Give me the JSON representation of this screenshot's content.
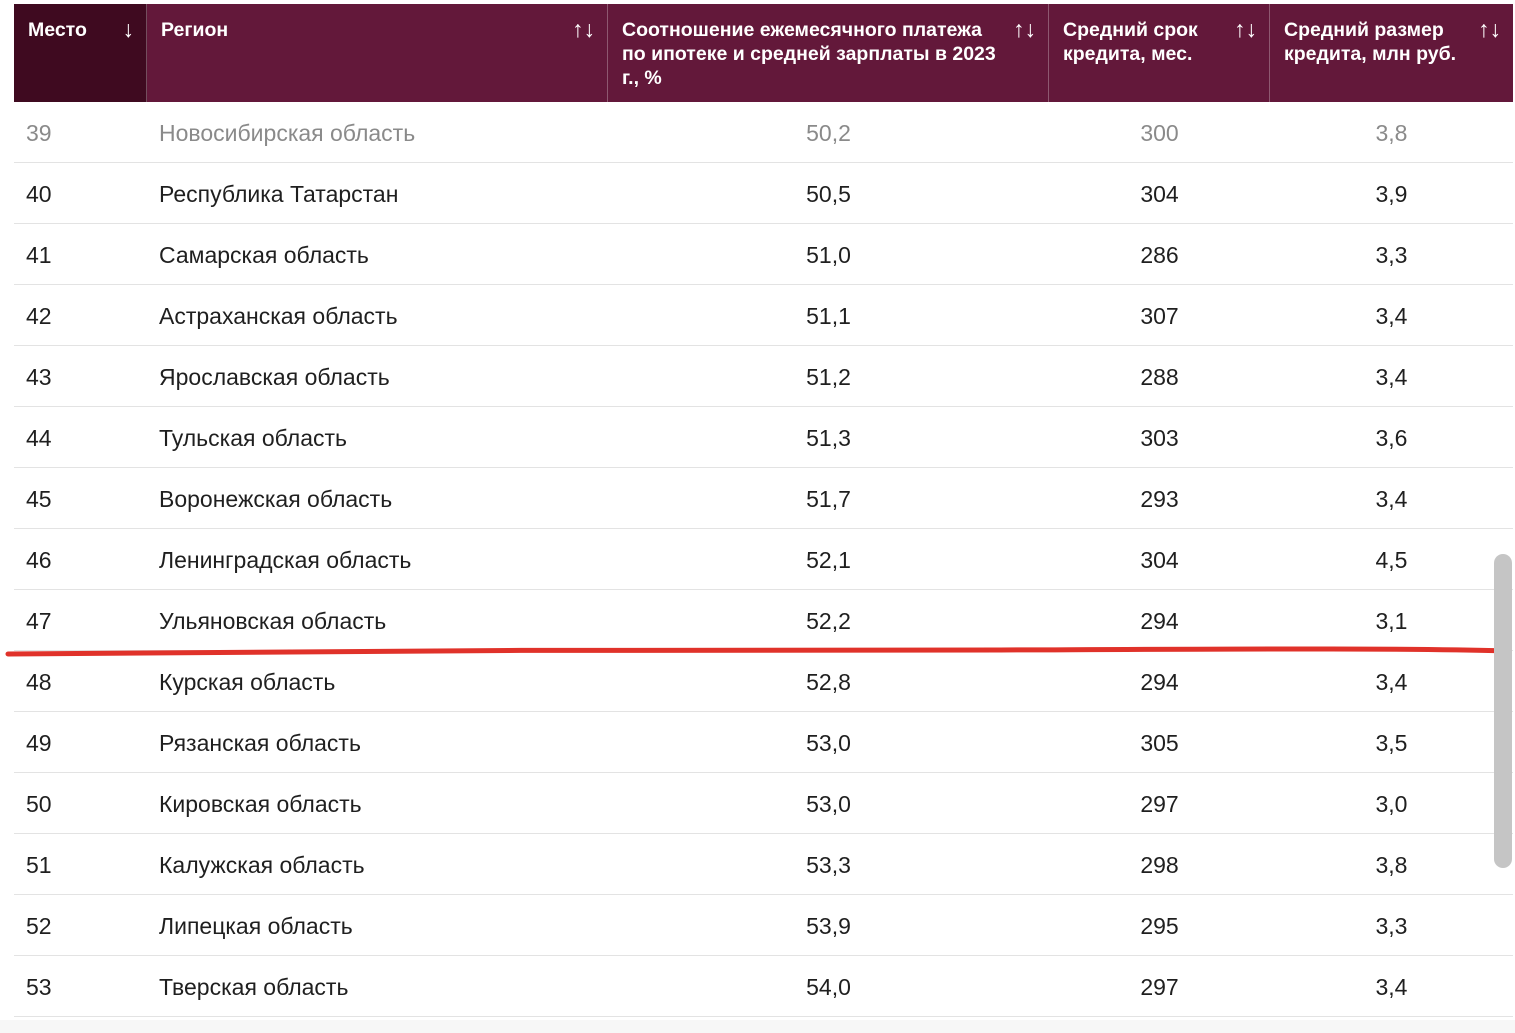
{
  "table": {
    "columns": [
      {
        "label": "Место",
        "sort_icon": "↓",
        "icon_name": "sort-desc-icon"
      },
      {
        "label": "Регион",
        "sort_icon": "↑↓",
        "icon_name": "sort-toggle-icon"
      },
      {
        "label": "Соотношение ежемесячного платежа по ипотеке и средней зарплаты в 2023 г., %",
        "sort_icon": "↑↓",
        "icon_name": "sort-toggle-icon"
      },
      {
        "label": "Средний срок кредита, мес.",
        "sort_icon": "↑↓",
        "icon_name": "sort-toggle-icon"
      },
      {
        "label": "Средний размер кредита, млн руб.",
        "sort_icon": "↑↓",
        "icon_name": "sort-toggle-icon"
      }
    ],
    "rows": [
      [
        "39",
        "Новосибирская область",
        "50,2",
        "300",
        "3,8"
      ],
      [
        "40",
        "Республика Татарстан",
        "50,5",
        "304",
        "3,9"
      ],
      [
        "41",
        "Самарская область",
        "51,0",
        "286",
        "3,3"
      ],
      [
        "42",
        "Астраханская область",
        "51,1",
        "307",
        "3,4"
      ],
      [
        "43",
        "Ярославская область",
        "51,2",
        "288",
        "3,4"
      ],
      [
        "44",
        "Тульская область",
        "51,3",
        "303",
        "3,6"
      ],
      [
        "45",
        "Воронежская область",
        "51,7",
        "293",
        "3,4"
      ],
      [
        "46",
        "Ленинградская область",
        "52,1",
        "304",
        "4,5"
      ],
      [
        "47",
        "Ульяновская область",
        "52,2",
        "294",
        "3,1"
      ],
      [
        "48",
        "Курская область",
        "52,8",
        "294",
        "3,4"
      ],
      [
        "49",
        "Рязанская область",
        "53,0",
        "305",
        "3,5"
      ],
      [
        "50",
        "Кировская область",
        "53,0",
        "297",
        "3,0"
      ],
      [
        "51",
        "Калужская область",
        "53,3",
        "298",
        "3,8"
      ],
      [
        "52",
        "Липецкая область",
        "53,9",
        "295",
        "3,3"
      ],
      [
        "53",
        "Тверская область",
        "54,0",
        "297",
        "3,4"
      ]
    ]
  },
  "colors": {
    "header_bg": "#63183a",
    "header_active_bg": "#3f0a20",
    "annotation_line": "#e0322a"
  }
}
